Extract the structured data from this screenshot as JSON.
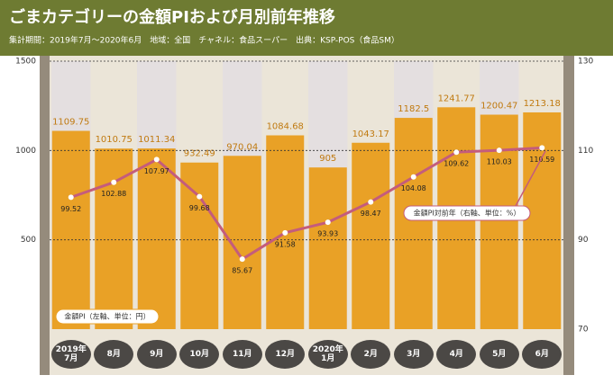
{
  "chart_data": {
    "type": "bar",
    "title": "ごまカテゴリーの金額PIおよび月別前年推移",
    "subtitle": "集計期間：2019年7月～2020年6月　地域：全国　チャネル：食品スーパー　出典：KSP-POS（食品SM）",
    "categories": [
      "2019年\n7月",
      "8月",
      "9月",
      "10月",
      "11月",
      "12月",
      "2020年\n1月",
      "2月",
      "3月",
      "4月",
      "5月",
      "6月"
    ],
    "series": [
      {
        "name": "金額PI（左軸、単位：円）",
        "type": "bar",
        "color": "#e9a126",
        "values": [
          1109.75,
          1010.75,
          1011.34,
          932.49,
          970.04,
          1084.68,
          905,
          1043.17,
          1182.5,
          1241.77,
          1200.47,
          1213.18
        ]
      },
      {
        "name": "金額PI対前年（右軸、単位：%）",
        "type": "line",
        "axis": "y2",
        "color": "#c45c7c",
        "values": [
          99.52,
          102.88,
          107.97,
          99.68,
          85.67,
          91.58,
          93.93,
          98.47,
          104.08,
          109.62,
          110.03,
          110.59
        ]
      }
    ],
    "ylim": [
      0,
      1500
    ],
    "yticks": [
      500,
      1000,
      1500
    ],
    "y2lim": [
      70,
      130
    ],
    "y2ticks": [
      70,
      90,
      110,
      130
    ],
    "grid": true
  }
}
